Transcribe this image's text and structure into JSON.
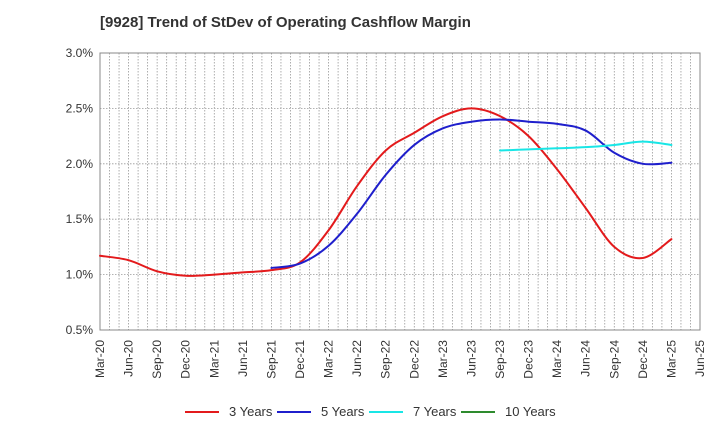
{
  "chart_data": {
    "type": "line",
    "title": "[9928]  Trend of StDev of Operating Cashflow Margin",
    "xlabel": "",
    "ylabel": "",
    "ylim": [
      0.5,
      3.0
    ],
    "yticks": [
      "0.5%",
      "1.0%",
      "1.5%",
      "2.0%",
      "2.5%",
      "3.0%"
    ],
    "ytick_values": [
      0.5,
      1.0,
      1.5,
      2.0,
      2.5,
      3.0
    ],
    "grid": true,
    "legend_position": "bottom",
    "x_ticks": [
      "Mar-20",
      "Jun-20",
      "Sep-20",
      "Dec-20",
      "Mar-21",
      "Jun-21",
      "Sep-21",
      "Dec-21",
      "Mar-22",
      "Jun-22",
      "Sep-22",
      "Dec-22",
      "Mar-23",
      "Jun-23",
      "Sep-23",
      "Dec-23",
      "Mar-24",
      "Jun-24",
      "Sep-24",
      "Dec-24",
      "Mar-25",
      "Jun-25"
    ],
    "series": [
      {
        "name": "3 Years",
        "color": "#e31a1c",
        "x": [
          "Mar-20",
          "Jun-20",
          "Sep-20",
          "Dec-20",
          "Mar-21",
          "Jun-21",
          "Sep-21",
          "Dec-21",
          "Mar-22",
          "Jun-22",
          "Sep-22",
          "Dec-22",
          "Mar-23",
          "Jun-23",
          "Sep-23",
          "Dec-23",
          "Mar-24",
          "Jun-24",
          "Sep-24",
          "Dec-24",
          "Mar-25"
        ],
        "values": [
          1.17,
          1.13,
          1.03,
          0.99,
          1.0,
          1.02,
          1.04,
          1.11,
          1.4,
          1.8,
          2.12,
          2.28,
          2.43,
          2.5,
          2.43,
          2.25,
          1.95,
          1.6,
          1.25,
          1.15,
          1.32
        ]
      },
      {
        "name": "5 Years",
        "color": "#1f1fcc",
        "x": [
          "Sep-21",
          "Dec-21",
          "Mar-22",
          "Jun-22",
          "Sep-22",
          "Dec-22",
          "Mar-23",
          "Jun-23",
          "Sep-23",
          "Dec-23",
          "Mar-24",
          "Jun-24",
          "Sep-24",
          "Dec-24",
          "Mar-25"
        ],
        "values": [
          1.06,
          1.1,
          1.26,
          1.55,
          1.9,
          2.17,
          2.32,
          2.38,
          2.4,
          2.38,
          2.36,
          2.3,
          2.1,
          2.0,
          2.01
        ]
      },
      {
        "name": "7 Years",
        "color": "#19e6e6",
        "x": [
          "Sep-23",
          "Dec-23",
          "Mar-24",
          "Jun-24",
          "Sep-24",
          "Dec-24",
          "Mar-25"
        ],
        "values": [
          2.12,
          2.13,
          2.14,
          2.15,
          2.17,
          2.2,
          2.17
        ]
      },
      {
        "name": "10 Years",
        "color": "#2e8b2e",
        "x": [],
        "values": []
      }
    ]
  }
}
